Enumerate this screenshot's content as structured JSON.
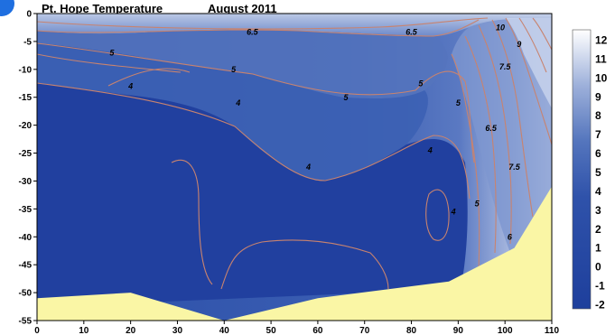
{
  "chart_data": {
    "type": "contour",
    "title": "Pt. Hope Temperature",
    "subtitle": "August 2011",
    "xlabel": "",
    "ylabel": "",
    "xlim": [
      0,
      110
    ],
    "ylim": [
      -55,
      0
    ],
    "x_ticks": [
      0,
      10,
      20,
      30,
      40,
      50,
      60,
      70,
      80,
      90,
      100,
      110
    ],
    "y_ticks": [
      -55,
      -50,
      -45,
      -40,
      -35,
      -30,
      -25,
      -20,
      -15,
      -10,
      -5,
      0
    ],
    "colorbar": {
      "placement": "right",
      "levels": [
        -2,
        -1,
        0,
        1,
        2,
        3,
        4,
        5,
        6,
        7,
        8,
        9,
        10,
        11,
        12
      ],
      "labels": [
        "-2",
        "-1",
        "0",
        "1",
        "2",
        "3",
        "4",
        "5",
        "6",
        "7",
        "8",
        "9",
        "10",
        "11",
        "12"
      ],
      "color_low": "#1e3f9c",
      "color_high": "#ffffff"
    },
    "bottom_profile": [
      [
        0,
        -51
      ],
      [
        20,
        -50
      ],
      [
        40,
        -55
      ],
      [
        60,
        -51
      ],
      [
        88,
        -48
      ],
      [
        102,
        -42
      ],
      [
        110,
        -31
      ]
    ],
    "contour_labels": [
      {
        "text": "6.5",
        "x": 46,
        "y": -3.8
      },
      {
        "text": "6.5",
        "x": 80,
        "y": -3.8
      },
      {
        "text": "5",
        "x": 16,
        "y": -7.5
      },
      {
        "text": "5",
        "x": 42,
        "y": -10.5
      },
      {
        "text": "5",
        "x": 66,
        "y": -15.5
      },
      {
        "text": "5",
        "x": 82,
        "y": -13
      },
      {
        "text": "4",
        "x": 20,
        "y": -13.5
      },
      {
        "text": "4",
        "x": 43,
        "y": -16.5
      },
      {
        "text": "4",
        "x": 58,
        "y": -28
      },
      {
        "text": "4",
        "x": 84,
        "y": -25
      },
      {
        "text": "4",
        "x": 89,
        "y": -36
      },
      {
        "text": "5",
        "x": 90,
        "y": -16.5
      },
      {
        "text": "5",
        "x": 94,
        "y": -34.5
      },
      {
        "text": "6.5",
        "x": 97,
        "y": -21
      },
      {
        "text": "7.5",
        "x": 100,
        "y": -10
      },
      {
        "text": "7.5",
        "x": 102,
        "y": -28
      },
      {
        "text": "9",
        "x": 103,
        "y": -6
      },
      {
        "text": "10",
        "x": 99,
        "y": -3
      },
      {
        "text": "6",
        "x": 101,
        "y": -40.5
      }
    ],
    "colors": {
      "deep": "#1f409d",
      "mid": "#4a6cb8",
      "light": "#97aad6",
      "seabed": "#faf6a5",
      "contour_line": "#c8836f"
    }
  },
  "badge": {
    "color": "#1f6fe0"
  }
}
